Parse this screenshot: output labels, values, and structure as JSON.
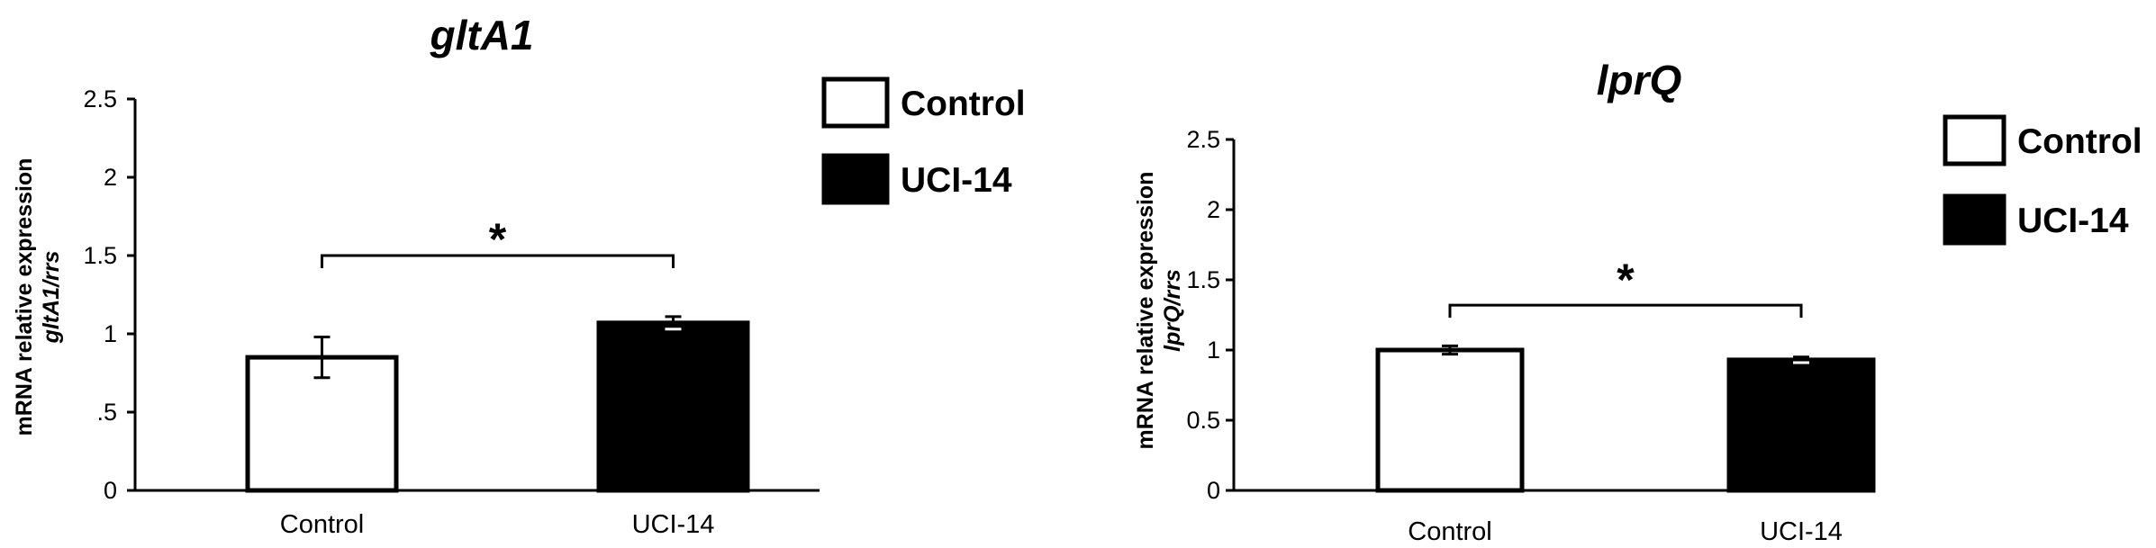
{
  "chart_data": [
    {
      "type": "bar",
      "title": "gltA1",
      "ylabel": "mRNA relative expression",
      "ylabel_sub": "gltA1/rrs",
      "categories": [
        "Control",
        "UCI-14"
      ],
      "values": [
        0.85,
        1.07
      ],
      "errors": [
        0.13,
        0.04
      ],
      "ylim": [
        0,
        2.5
      ],
      "yticks": [
        0,
        0.5,
        1,
        1.5,
        2,
        2.5
      ],
      "ytick_labels": [
        "0",
        ".5",
        "1",
        "1.5",
        "2",
        "2.5"
      ],
      "legend": [
        {
          "name": "Control",
          "fill": "#ffffff"
        },
        {
          "name": "UCI-14",
          "fill": "#000000"
        }
      ],
      "legend_position": "top-right",
      "significance": {
        "label": "*",
        "bracket_y": 1.5
      },
      "grid": false
    },
    {
      "type": "bar",
      "title": "lprQ",
      "ylabel": "mRNA relative expression",
      "ylabel_sub": "lprQ/rrs",
      "categories": [
        "Control",
        "UCI-14"
      ],
      "values": [
        1.0,
        0.93
      ],
      "errors": [
        0.03,
        0.02
      ],
      "ylim": [
        0,
        2.5
      ],
      "yticks": [
        0,
        0.5,
        1,
        1.5,
        2,
        2.5
      ],
      "ytick_labels": [
        "0",
        "0.5",
        "1",
        "1.5",
        "2",
        "2.5"
      ],
      "legend": [
        {
          "name": "Control",
          "fill": "#ffffff"
        },
        {
          "name": "UCI-14",
          "fill": "#000000"
        }
      ],
      "legend_position": "top-right",
      "significance": {
        "label": "*",
        "bracket_y": 1.32
      },
      "grid": false
    }
  ]
}
